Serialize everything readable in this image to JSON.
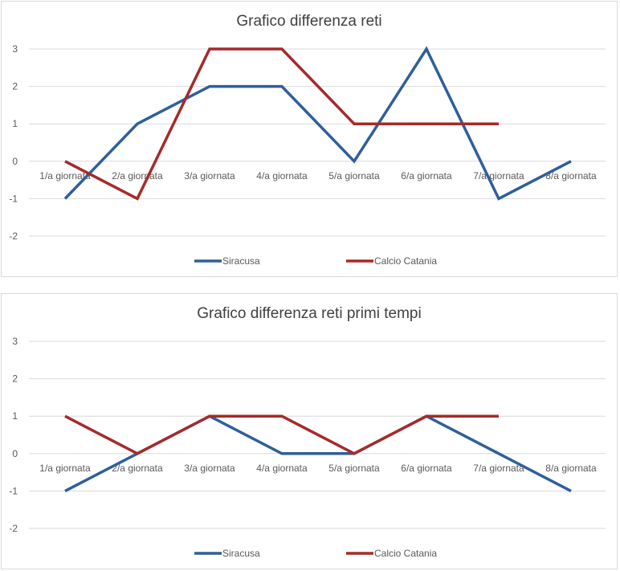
{
  "chart_data": [
    {
      "type": "line",
      "title": "Grafico differenza reti",
      "categories": [
        "1/a giornata",
        "2/a giornata",
        "3/a giornata",
        "4/a giornata",
        "5/a giornata",
        "6/a giornata",
        "7/a giornata",
        "8/a giornata"
      ],
      "y_ticks": [
        "3",
        "2",
        "1",
        "0",
        "-1",
        "-2"
      ],
      "ylim": [
        -2,
        3
      ],
      "grid": true,
      "legend_position": "bottom",
      "series": [
        {
          "name": "Siracusa",
          "color": "#2e5f9a",
          "values": [
            -1,
            1,
            2,
            2,
            0,
            3,
            -1,
            0
          ]
        },
        {
          "name": "Calcio Catania",
          "color": "#a52a2a",
          "values": [
            0,
            -1,
            3,
            3,
            1,
            1,
            1,
            null
          ]
        }
      ]
    },
    {
      "type": "line",
      "title": "Grafico differenza reti primi tempi",
      "categories": [
        "1/a giornata",
        "2/a giornata",
        "3/a giornata",
        "4/a giornata",
        "5/a giornata",
        "6/a giornata",
        "7/a giornata",
        "8/a giornata"
      ],
      "y_ticks": [
        "3",
        "2",
        "1",
        "0",
        "-1",
        "-2"
      ],
      "ylim": [
        -2,
        3
      ],
      "grid": true,
      "legend_position": "bottom",
      "series": [
        {
          "name": "Siracusa",
          "color": "#2e5f9a",
          "values": [
            -1,
            0,
            1,
            0,
            0,
            1,
            0,
            -1
          ]
        },
        {
          "name": "Calcio Catania",
          "color": "#a52a2a",
          "values": [
            1,
            0,
            1,
            1,
            0,
            1,
            1,
            null
          ]
        }
      ]
    }
  ]
}
